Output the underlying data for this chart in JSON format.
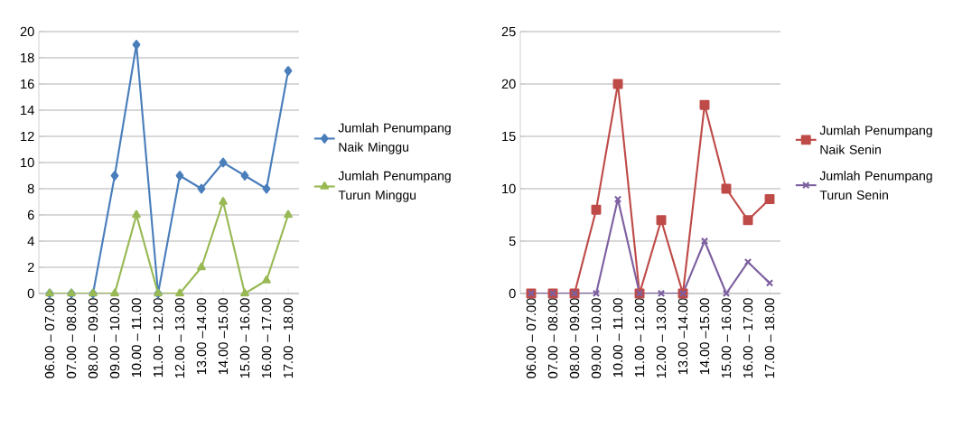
{
  "chart_data": [
    {
      "type": "line",
      "categories": [
        "06.00 – 07.00",
        "07.00 – 08.00",
        "08.00 – 09.00",
        "09.00 – 10.00",
        "10.00 – 11.00",
        "11.00 – 12.00",
        "12.00 – 13.00",
        "13.00 –14.00",
        "14.00 –15.00",
        "15.00 – 16.00",
        "16.00 – 17.00",
        "17.00 – 18.00"
      ],
      "series": [
        {
          "name": "Jumlah Penumpang Naik Minggu",
          "color": "#4a7ebb",
          "marker": "diamond",
          "values": [
            0,
            0,
            0,
            9,
            19,
            0,
            9,
            8,
            10,
            9,
            8,
            17
          ]
        },
        {
          "name": "Jumlah Penumpang Turun Minggu",
          "color": "#98b954",
          "marker": "triangle",
          "values": [
            0,
            0,
            0,
            0,
            6,
            0,
            0,
            2,
            7,
            0,
            1,
            6
          ]
        }
      ],
      "ylim": [
        0,
        20
      ],
      "yticks": [
        0,
        2,
        4,
        6,
        8,
        10,
        12,
        14,
        16,
        18,
        20
      ],
      "grid": "y",
      "legend": "right",
      "line_style": "solid"
    },
    {
      "type": "line",
      "categories": [
        "06.00 – 07.00",
        "07.00 – 08.00",
        "08.00 – 09.00",
        "09.00 – 10.00",
        "10.00 – 11.00",
        "11.00 – 12.00",
        "12.00 – 13.00",
        "13.00 –14.00",
        "14.00 –15.00",
        "15.00 – 16.00",
        "16.00 – 17.00",
        "17.00 – 18.00"
      ],
      "series": [
        {
          "name": "Jumlah Penumpang Naik Senin",
          "color": "#be4b48",
          "marker": "square",
          "values": [
            0,
            0,
            0,
            8,
            20,
            0,
            7,
            0,
            18,
            10,
            7,
            9
          ]
        },
        {
          "name": "Jumlah Penumpang Turun Senin",
          "color": "#7d60a0",
          "marker": "cross",
          "values": [
            0,
            0,
            0,
            0,
            9,
            0,
            0,
            0,
            5,
            0,
            3,
            1
          ]
        }
      ],
      "ylim": [
        0,
        25
      ],
      "yticks": [
        0,
        5,
        10,
        15,
        20,
        25
      ],
      "grid": "y",
      "legend": "right",
      "line_style": "solid"
    }
  ]
}
